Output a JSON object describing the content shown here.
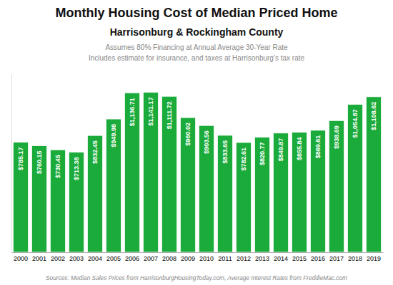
{
  "chart_data": {
    "type": "bar",
    "title": "Monthly Housing Cost of Median Priced Home",
    "subtitle": "Harrisonburg & Rockingham County",
    "annotations": [
      "Assumes 80% Financing at Annual Average 30-Year Rate",
      "Includes estimate for insurance, and taxes at Harrisonburg’s tax rate"
    ],
    "source": "Sources: Median Sales Prices from HarrisonburgHousingToday.com, Average Interest Rates from FreddieMac.com",
    "categories": [
      "2000",
      "2001",
      "2002",
      "2003",
      "2004",
      "2005",
      "2006",
      "2007",
      "2008",
      "2009",
      "2010",
      "2011",
      "2012",
      "2013",
      "2014",
      "2015",
      "2016",
      "2017",
      "2018",
      "2019"
    ],
    "values": [
      785.17,
      760.15,
      730.45,
      713.38,
      832.45,
      949.98,
      1136.71,
      1141.17,
      1111.72,
      960.02,
      903.56,
      833.65,
      782.61,
      820.77,
      849.87,
      855.84,
      869.61,
      938.69,
      1054.87,
      1108.62
    ],
    "value_labels": [
      "$785.17",
      "$760.15",
      "$730.45",
      "$713.38",
      "$832.45",
      "$949.98",
      "$1,136.71",
      "$1,141.17",
      "$1,111.72",
      "$960.02",
      "$903.56",
      "$833.65",
      "$782.61",
      "$820.77",
      "$849.87",
      "$855.84",
      "$869.61",
      "$938.69",
      "$1,054.87",
      "$1,108.62"
    ],
    "data_labels": true,
    "color": "#1aab3a",
    "ylim": [
      0,
      1270
    ],
    "tick_labels": "x"
  }
}
